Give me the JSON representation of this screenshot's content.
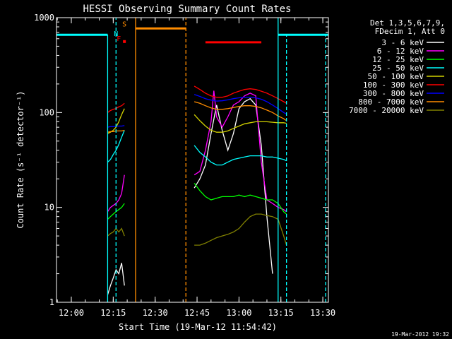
{
  "chart_data": {
    "type": "line",
    "title": "HESSI Observing Summary Count Rates",
    "xlabel": "Start Time (19-Mar-12 11:54:42)",
    "ylabel": "Count Rate (s⁻¹ detector⁻¹)",
    "y_scale": "log",
    "ylim": [
      1,
      1000
    ],
    "xlim": [
      "11:54:42",
      "13:32:00"
    ],
    "x_ticks": [
      "12:00",
      "12:15",
      "12:30",
      "12:45",
      "13:00",
      "13:15",
      "13:30"
    ],
    "y_ticks": [
      "1",
      "10",
      "100",
      "1000"
    ],
    "grid": false,
    "legend_position": "right",
    "legend_header": [
      "Det 1,3,5,6,7,9,",
      "FDecim 1, Att 0"
    ],
    "timestamp": "19-Mar-2012 19:32",
    "series": [
      {
        "name": "3 - 6 keV",
        "color": "#ffffff",
        "segments": [
          {
            "x": [
              "12:13",
              "12:14",
              "12:15",
              "12:16",
              "12:17",
              "12:18",
              "12:19"
            ],
            "y": [
              1.2,
              1.5,
              1.8,
              2.2,
              2.0,
              2.6,
              1.5
            ]
          },
          {
            "x": [
              "12:44",
              "12:46",
              "12:48",
              "12:50",
              "12:52",
              "12:54",
              "12:56",
              "12:58",
              "13:00",
              "13:02",
              "13:04",
              "13:06",
              "13:08",
              "13:10",
              "13:12"
            ],
            "y": [
              16,
              20,
              28,
              60,
              120,
              65,
              40,
              60,
              110,
              130,
              140,
              120,
              45,
              8,
              2
            ]
          }
        ]
      },
      {
        "name": "6 - 12 keV",
        "color": "#ff00ff",
        "segments": [
          {
            "x": [
              "12:13",
              "12:14",
              "12:15",
              "12:16",
              "12:17",
              "12:18",
              "12:19"
            ],
            "y": [
              9,
              10,
              10.5,
              11,
              12,
              14,
              22
            ]
          },
          {
            "x": [
              "12:44",
              "12:46",
              "12:48",
              "12:50",
              "12:51",
              "12:52",
              "12:54",
              "12:56",
              "12:58",
              "13:00",
              "13:02",
              "13:04",
              "13:06",
              "13:08",
              "13:10",
              "13:12",
              "13:14",
              "13:16",
              "13:17"
            ],
            "y": [
              22,
              24,
              40,
              80,
              170,
              90,
              70,
              90,
              120,
              130,
              150,
              160,
              150,
              30,
              12,
              11,
              10,
              9.5,
              9
            ]
          }
        ]
      },
      {
        "name": "12 - 25 keV",
        "color": "#00ff00",
        "segments": [
          {
            "x": [
              "12:13",
              "12:14",
              "12:15",
              "12:16",
              "12:17",
              "12:18",
              "12:19"
            ],
            "y": [
              7.5,
              8,
              8.5,
              9,
              9.5,
              10,
              11
            ]
          },
          {
            "x": [
              "12:44",
              "12:46",
              "12:48",
              "12:50",
              "12:52",
              "12:54",
              "12:56",
              "12:58",
              "13:00",
              "13:02",
              "13:04",
              "13:06",
              "13:08",
              "13:10",
              "13:12",
              "13:14",
              "13:16",
              "13:17"
            ],
            "y": [
              18,
              15,
              13,
              12,
              12.5,
              13,
              13,
              13,
              13.5,
              13,
              13.5,
              13,
              12.5,
              12,
              12,
              11,
              9,
              8.5
            ]
          }
        ]
      },
      {
        "name": "25 - 50 keV",
        "color": "#00ffff",
        "segments": [
          {
            "x": [
              "12:13",
              "12:14",
              "12:15",
              "12:16",
              "12:17",
              "12:18",
              "12:19"
            ],
            "y": [
              30,
              32,
              36,
              40,
              46,
              55,
              65
            ]
          },
          {
            "x": [
              "12:44",
              "12:46",
              "12:48",
              "12:50",
              "12:52",
              "12:54",
              "12:56",
              "12:58",
              "13:00",
              "13:02",
              "13:04",
              "13:06",
              "13:08",
              "13:10",
              "13:12",
              "13:14",
              "13:16",
              "13:17"
            ],
            "y": [
              45,
              38,
              34,
              30,
              28,
              28,
              30,
              32,
              33,
              34,
              35,
              35,
              35,
              34,
              34,
              33,
              32,
              31
            ]
          }
        ]
      },
      {
        "name": "50 - 100 keV",
        "color": "#d2d200",
        "segments": [
          {
            "x": [
              "12:13",
              "12:14",
              "12:15",
              "12:16",
              "12:17",
              "12:18",
              "12:19"
            ],
            "y": [
              60,
              62,
              65,
              70,
              80,
              95,
              110
            ]
          },
          {
            "x": [
              "12:44",
              "12:46",
              "12:48",
              "12:50",
              "12:52",
              "12:54",
              "12:56",
              "12:58",
              "13:00",
              "13:02",
              "13:04",
              "13:06",
              "13:08",
              "13:10",
              "13:12",
              "13:14",
              "13:16",
              "13:17"
            ],
            "y": [
              95,
              82,
              72,
              65,
              62,
              62,
              64,
              68,
              72,
              76,
              78,
              80,
              80,
              80,
              79,
              78,
              78,
              77
            ]
          }
        ]
      },
      {
        "name": "100 - 300 keV",
        "color": "#ff0000",
        "segments": [
          {
            "x": [
              "12:13",
              "12:14",
              "12:15",
              "12:16",
              "12:17",
              "12:18",
              "12:19"
            ],
            "y": [
              100,
              105,
              108,
              110,
              115,
              118,
              125
            ]
          },
          {
            "x": [
              "12:44",
              "12:46",
              "12:48",
              "12:50",
              "12:52",
              "12:54",
              "12:56",
              "12:58",
              "13:00",
              "13:02",
              "13:04",
              "13:06",
              "13:08",
              "13:10",
              "13:12",
              "13:14",
              "13:16",
              "13:17"
            ],
            "y": [
              190,
              175,
              160,
              150,
              145,
              145,
              150,
              160,
              168,
              175,
              178,
              175,
              168,
              160,
              150,
              140,
              130,
              125
            ]
          }
        ]
      },
      {
        "name": "300 - 800 keV",
        "color": "#0000ff",
        "segments": [
          {
            "x": [
              "12:13",
              "12:14",
              "12:15",
              "12:16",
              "12:17",
              "12:18",
              "12:19"
            ],
            "y": [
              70,
              71,
              71,
              72,
              72,
              72,
              73
            ]
          },
          {
            "x": [
              "12:44",
              "12:46",
              "12:48",
              "12:50",
              "12:52",
              "12:54",
              "12:56",
              "12:58",
              "13:00",
              "13:02",
              "13:04",
              "13:06",
              "13:08",
              "13:10",
              "13:12",
              "13:14",
              "13:16",
              "13:17"
            ],
            "y": [
              155,
              148,
              140,
              135,
              132,
              133,
              136,
              140,
              143,
              145,
              145,
              143,
              138,
              130,
              120,
              110,
              100,
              96
            ]
          }
        ]
      },
      {
        "name": "800 - 7000 keV",
        "color": "#ff8c00",
        "segments": [
          {
            "x": [
              "12:13",
              "12:14",
              "12:15",
              "12:16",
              "12:17",
              "12:18",
              "12:19"
            ],
            "y": [
              62,
              63,
              63,
              64,
              64,
              64,
              65
            ]
          },
          {
            "x": [
              "12:44",
              "12:46",
              "12:48",
              "12:50",
              "12:52",
              "12:54",
              "12:56",
              "12:58",
              "13:00",
              "13:02",
              "13:04",
              "13:06",
              "13:08",
              "13:10",
              "13:12",
              "13:14",
              "13:16",
              "13:17"
            ],
            "y": [
              130,
              125,
              118,
              112,
              108,
              108,
              110,
              113,
              116,
              118,
              118,
              116,
              112,
              106,
              100,
              92,
              86,
              82
            ]
          }
        ]
      },
      {
        "name": "7000 - 20000 keV",
        "color": "#808000",
        "segments": [
          {
            "x": [
              "12:13",
              "12:14",
              "12:15",
              "12:16",
              "12:17",
              "12:18",
              "12:19"
            ],
            "y": [
              5,
              5.3,
              5.5,
              6,
              5.5,
              6,
              5
            ]
          },
          {
            "x": [
              "12:44",
              "12:46",
              "12:48",
              "12:50",
              "12:52",
              "12:54",
              "12:56",
              "12:58",
              "13:00",
              "13:02",
              "13:04",
              "13:06",
              "13:08",
              "13:10",
              "13:12",
              "13:14",
              "13:16",
              "13:17"
            ],
            "y": [
              4,
              4,
              4.2,
              4.5,
              4.8,
              5,
              5.2,
              5.5,
              6,
              7,
              8,
              8.5,
              8.5,
              8.2,
              8,
              7.5,
              5,
              4
            ]
          }
        ]
      }
    ],
    "flags": [
      {
        "color": "#00ffff",
        "y": 660,
        "segments": [
          [
            "11:54:42",
            "12:13"
          ],
          [
            "13:14",
            "13:32"
          ]
        ]
      },
      {
        "color": "#ff8c00",
        "y": 770,
        "segments": [
          [
            "12:23",
            "12:41"
          ]
        ]
      },
      {
        "color": "#ff0000",
        "y": 550,
        "segments": [
          [
            "12:48",
            "13:08"
          ]
        ]
      }
    ],
    "flag_labels": [
      {
        "text": "N",
        "color": "#00ffff",
        "x": "12:16",
        "y": 640
      },
      {
        "text": "S",
        "color": "#ff8c00",
        "x": "12:19",
        "y": 810
      },
      {
        "text": "F",
        "color": "#ff0000",
        "x": "12:17",
        "y": 570
      }
    ],
    "red_dot": {
      "x": "12:19",
      "y": 560,
      "color": "#ff0000"
    },
    "vlines": [
      {
        "x": "12:13",
        "color": "#00ffff",
        "dash": false,
        "y_to": 660
      },
      {
        "x": "12:16",
        "color": "#00ffff",
        "dash": true,
        "y_to": 1000
      },
      {
        "x": "12:23",
        "color": "#ff8c00",
        "dash": false,
        "y_to": 1000
      },
      {
        "x": "12:41",
        "color": "#ff8c00",
        "dash": true,
        "y_to": 1000
      },
      {
        "x": "13:14",
        "color": "#00ffff",
        "dash": false,
        "y_to": 1000
      },
      {
        "x": "13:17",
        "color": "#00ffff",
        "dash": true,
        "y_to": 660
      },
      {
        "x": "13:31",
        "color": "#00ffff",
        "dash": true,
        "y_to": 660
      }
    ]
  }
}
